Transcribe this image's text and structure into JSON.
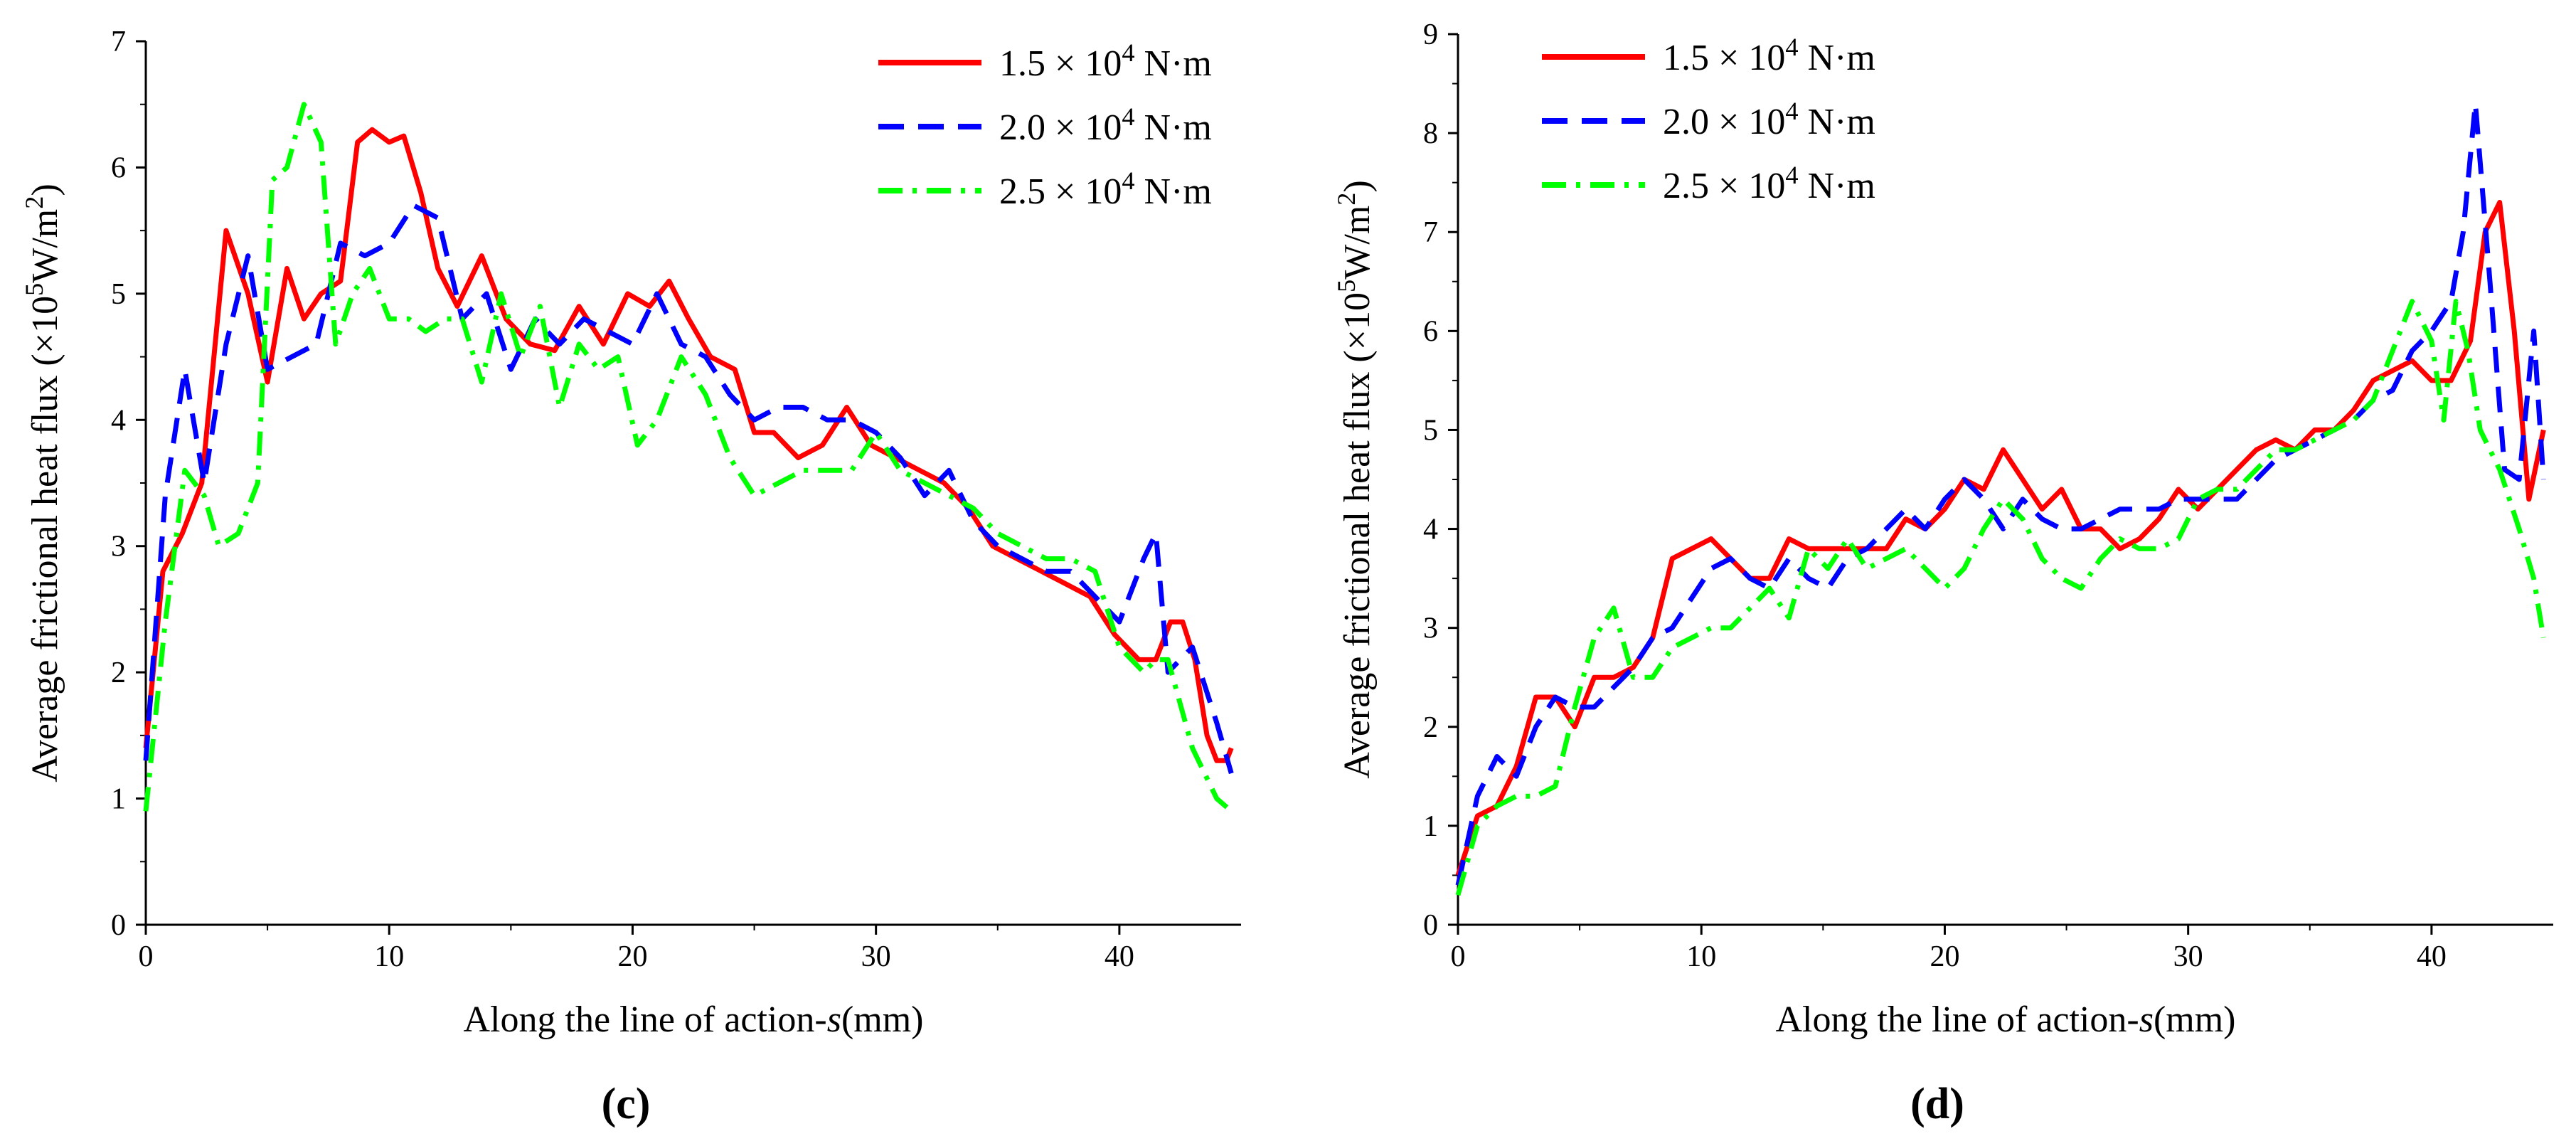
{
  "figure": {
    "panel_labels": [
      "(c)",
      "(d)"
    ]
  },
  "chart_data": [
    {
      "type": "line",
      "panel": "(c)",
      "xlabel": "Along the line of action-s(mm)",
      "ylabel": "Average frictional heat flux (×10⁵W/m²)",
      "xlim": [
        0,
        45
      ],
      "ylim": [
        0,
        7
      ],
      "xticks": [
        0,
        10,
        20,
        30,
        40
      ],
      "yticks": [
        0,
        1,
        2,
        3,
        4,
        5,
        6,
        7
      ],
      "legend_position": "top-right",
      "grid": false,
      "series": [
        {
          "name": "1.5 × 10⁴ N·m",
          "color": "#ff0000",
          "dash": "solid",
          "x": [
            0,
            0.7,
            1.5,
            2.3,
            3.3,
            4.2,
            5.0,
            5.8,
            6.5,
            7.2,
            8.0,
            8.7,
            9.3,
            10.0,
            10.6,
            11.3,
            12.0,
            12.8,
            13.8,
            14.8,
            15.8,
            16.8,
            17.8,
            18.8,
            19.8,
            20.7,
            21.5,
            22.3,
            23.2,
            24.2,
            25.0,
            25.8,
            26.8,
            27.8,
            28.8,
            29.8,
            30.8,
            31.8,
            32.8,
            33.8,
            34.8,
            35.8,
            36.8,
            37.8,
            38.8,
            39.8,
            40.8,
            41.5,
            42.1,
            42.6,
            43.1,
            43.6,
            44.0,
            44.4,
            44.6
          ],
          "y": [
            1.4,
            2.8,
            3.1,
            3.5,
            5.5,
            5.0,
            4.3,
            5.2,
            4.8,
            5.0,
            5.1,
            6.2,
            6.3,
            6.2,
            6.25,
            5.8,
            5.2,
            4.9,
            5.3,
            4.8,
            4.6,
            4.55,
            4.9,
            4.6,
            5.0,
            4.9,
            5.1,
            4.8,
            4.5,
            4.4,
            3.9,
            3.9,
            3.7,
            3.8,
            4.1,
            3.8,
            3.7,
            3.6,
            3.5,
            3.3,
            3.0,
            2.9,
            2.8,
            2.7,
            2.6,
            2.3,
            2.1,
            2.1,
            2.4,
            2.4,
            2.1,
            1.5,
            1.3,
            1.3,
            1.4
          ]
        },
        {
          "name": "2.0 × 10⁴ N·m",
          "color": "#0000ff",
          "dash": "dashed",
          "x": [
            0,
            0.8,
            1.6,
            2.4,
            3.3,
            4.2,
            5.0,
            6.0,
            7.0,
            8.0,
            9.0,
            10.0,
            11.0,
            12.0,
            13.0,
            14.0,
            15.0,
            16.0,
            17.0,
            18.0,
            19.0,
            20.0,
            21.0,
            22.0,
            23.0,
            24.0,
            25.0,
            26.0,
            27.0,
            28.0,
            29.0,
            30.0,
            31.0,
            32.0,
            33.0,
            34.0,
            35.0,
            36.0,
            37.0,
            38.0,
            39.0,
            40.0,
            41.0,
            41.5,
            42.0,
            43.0,
            44.0,
            44.6
          ],
          "y": [
            1.3,
            3.4,
            4.4,
            3.5,
            4.6,
            5.3,
            4.4,
            4.5,
            4.6,
            5.4,
            5.3,
            5.4,
            5.7,
            5.6,
            4.8,
            5.0,
            4.4,
            4.8,
            4.6,
            4.8,
            4.7,
            4.6,
            5.0,
            4.6,
            4.5,
            4.2,
            4.0,
            4.1,
            4.1,
            4.0,
            4.0,
            3.9,
            3.7,
            3.4,
            3.6,
            3.2,
            3.0,
            2.9,
            2.8,
            2.8,
            2.6,
            2.4,
            2.9,
            3.1,
            2.0,
            2.2,
            1.6,
            1.2
          ]
        },
        {
          "name": "2.5 × 10⁴ N·m",
          "color": "#00ff00",
          "dash": "dashdot",
          "x": [
            0,
            0.8,
            1.6,
            2.4,
            3.0,
            3.8,
            4.6,
            5.2,
            5.8,
            6.5,
            7.2,
            7.8,
            8.5,
            9.2,
            10.0,
            10.8,
            11.5,
            12.3,
            13.0,
            13.8,
            14.6,
            15.4,
            16.2,
            17.0,
            17.8,
            18.6,
            19.4,
            20.2,
            21.0,
            22.0,
            23.0,
            24.0,
            25.0,
            26.0,
            27.0,
            28.0,
            29.0,
            30.0,
            31.0,
            32.0,
            33.0,
            34.0,
            35.0,
            36.0,
            37.0,
            38.0,
            39.0,
            40.0,
            41.0,
            41.5,
            42.0,
            43.0,
            44.0,
            44.6
          ],
          "y": [
            0.9,
            2.4,
            3.6,
            3.4,
            3.0,
            3.1,
            3.5,
            5.9,
            6.0,
            6.5,
            6.2,
            4.6,
            5.0,
            5.2,
            4.8,
            4.8,
            4.7,
            4.8,
            4.8,
            4.3,
            5.0,
            4.5,
            4.9,
            4.1,
            4.6,
            4.4,
            4.5,
            3.8,
            4.0,
            4.5,
            4.2,
            3.7,
            3.4,
            3.5,
            3.6,
            3.6,
            3.6,
            3.9,
            3.6,
            3.5,
            3.4,
            3.3,
            3.1,
            3.0,
            2.9,
            2.9,
            2.8,
            2.2,
            2.0,
            2.1,
            2.1,
            1.4,
            1.0,
            0.9
          ]
        }
      ]
    },
    {
      "type": "line",
      "panel": "(d)",
      "xlabel": "Along the line of action-s(mm)",
      "ylabel": "Average frictional heat flux (×10⁵W/m²)",
      "xlim": [
        0,
        45
      ],
      "ylim": [
        0,
        9
      ],
      "xticks": [
        0,
        10,
        20,
        30,
        40
      ],
      "yticks": [
        0,
        1,
        2,
        3,
        4,
        5,
        6,
        7,
        8,
        9
      ],
      "legend_position": "top-left",
      "grid": false,
      "series": [
        {
          "name": "1.5 × 10⁴ N·m",
          "color": "#ff0000",
          "dash": "solid",
          "x": [
            0,
            0.8,
            1.6,
            2.4,
            3.2,
            4.0,
            4.8,
            5.6,
            6.4,
            7.2,
            8.0,
            8.8,
            9.6,
            10.4,
            11.2,
            12.0,
            12.8,
            13.6,
            14.4,
            15.2,
            16.0,
            16.8,
            17.6,
            18.4,
            19.2,
            20.0,
            20.8,
            21.6,
            22.4,
            23.2,
            24.0,
            24.8,
            25.6,
            26.4,
            27.2,
            28.0,
            28.8,
            29.6,
            30.4,
            31.2,
            32.0,
            32.8,
            33.6,
            34.4,
            35.2,
            36.0,
            36.8,
            37.6,
            38.4,
            39.2,
            40.0,
            40.8,
            41.6,
            42.2,
            42.8,
            43.4,
            44.0,
            44.6
          ],
          "y": [
            0.5,
            1.1,
            1.2,
            1.6,
            2.3,
            2.3,
            2.0,
            2.5,
            2.5,
            2.6,
            2.9,
            3.7,
            3.8,
            3.9,
            3.7,
            3.5,
            3.5,
            3.9,
            3.8,
            3.8,
            3.8,
            3.8,
            3.8,
            4.1,
            4.0,
            4.2,
            4.5,
            4.4,
            4.8,
            4.5,
            4.2,
            4.4,
            4.0,
            4.0,
            3.8,
            3.9,
            4.1,
            4.4,
            4.2,
            4.4,
            4.6,
            4.8,
            4.9,
            4.8,
            5.0,
            5.0,
            5.2,
            5.5,
            5.6,
            5.7,
            5.5,
            5.5,
            5.9,
            7.0,
            7.3,
            6.0,
            4.3,
            5.0
          ]
        },
        {
          "name": "2.0 × 10⁴ N·m",
          "color": "#0000ff",
          "dash": "dashed",
          "x": [
            0,
            0.8,
            1.6,
            2.4,
            3.2,
            4.0,
            4.8,
            5.6,
            6.4,
            7.2,
            8.0,
            8.8,
            9.6,
            10.4,
            11.2,
            12.0,
            12.8,
            13.6,
            14.4,
            15.2,
            16.0,
            16.8,
            17.6,
            18.4,
            19.2,
            20.0,
            20.8,
            21.6,
            22.4,
            23.2,
            24.0,
            24.8,
            25.6,
            26.4,
            27.2,
            28.0,
            28.8,
            29.6,
            30.4,
            31.2,
            32.0,
            32.8,
            33.6,
            34.4,
            35.2,
            36.0,
            36.8,
            37.6,
            38.4,
            39.2,
            40.0,
            40.8,
            41.3,
            41.8,
            42.4,
            43.0,
            43.6,
            44.2,
            44.6
          ],
          "y": [
            0.4,
            1.3,
            1.7,
            1.5,
            2.0,
            2.3,
            2.2,
            2.2,
            2.4,
            2.6,
            2.9,
            3.0,
            3.3,
            3.6,
            3.7,
            3.5,
            3.4,
            3.7,
            3.5,
            3.4,
            3.7,
            3.8,
            4.0,
            4.2,
            4.0,
            4.3,
            4.5,
            4.3,
            4.0,
            4.3,
            4.1,
            4.0,
            4.0,
            4.1,
            4.2,
            4.2,
            4.2,
            4.3,
            4.3,
            4.3,
            4.3,
            4.5,
            4.7,
            4.8,
            4.9,
            5.0,
            5.1,
            5.3,
            5.4,
            5.8,
            6.0,
            6.3,
            7.0,
            8.3,
            6.5,
            4.6,
            4.5,
            6.0,
            4.5
          ]
        },
        {
          "name": "2.5 × 10⁴ N·m",
          "color": "#00ff00",
          "dash": "dashdot",
          "x": [
            0,
            0.8,
            1.6,
            2.4,
            3.2,
            4.0,
            4.8,
            5.6,
            6.4,
            7.2,
            8.0,
            8.8,
            9.6,
            10.4,
            11.2,
            12.0,
            12.8,
            13.6,
            14.4,
            15.2,
            16.0,
            16.8,
            17.6,
            18.4,
            19.2,
            20.0,
            20.8,
            21.6,
            22.4,
            23.2,
            24.0,
            24.8,
            25.6,
            26.4,
            27.2,
            28.0,
            28.8,
            29.6,
            30.4,
            31.2,
            32.0,
            32.8,
            33.6,
            34.4,
            35.2,
            36.0,
            36.8,
            37.6,
            38.4,
            39.2,
            40.0,
            40.5,
            41.0,
            41.5,
            42.0,
            42.8,
            43.6,
            44.2,
            44.6
          ],
          "y": [
            0.3,
            1.0,
            1.2,
            1.3,
            1.3,
            1.4,
            2.2,
            2.9,
            3.2,
            2.5,
            2.5,
            2.8,
            2.9,
            3.0,
            3.0,
            3.2,
            3.4,
            3.1,
            3.8,
            3.6,
            3.9,
            3.6,
            3.7,
            3.8,
            3.6,
            3.4,
            3.6,
            4.0,
            4.3,
            4.1,
            3.7,
            3.5,
            3.4,
            3.7,
            3.9,
            3.8,
            3.8,
            3.9,
            4.3,
            4.4,
            4.4,
            4.6,
            4.8,
            4.8,
            4.9,
            5.0,
            5.1,
            5.3,
            5.8,
            6.3,
            5.9,
            5.1,
            6.3,
            5.8,
            5.0,
            4.6,
            4.0,
            3.5,
            2.9
          ]
        }
      ]
    }
  ]
}
